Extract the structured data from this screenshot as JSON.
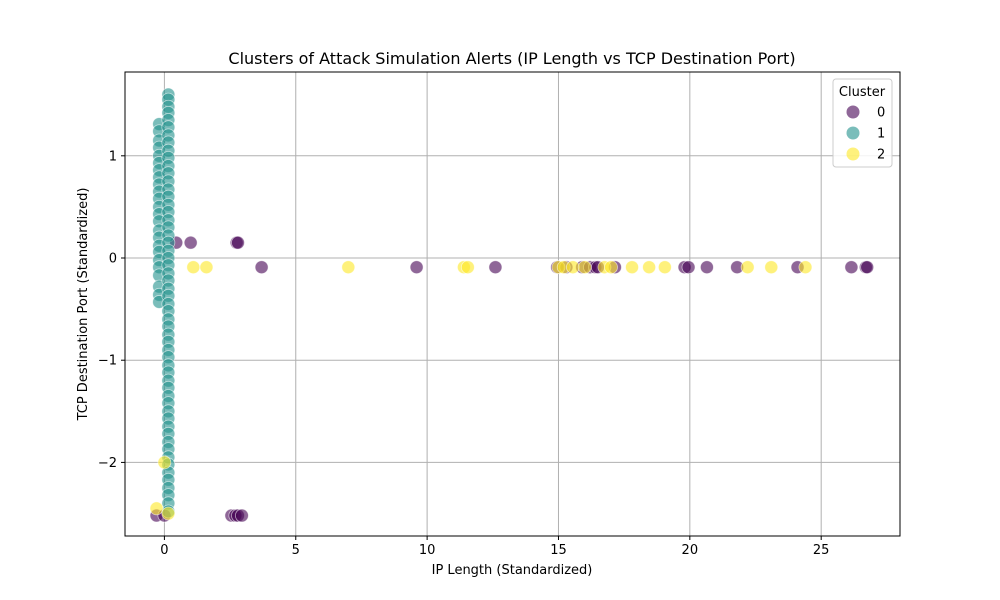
{
  "chart_data": {
    "type": "scatter",
    "title": "Clusters of Attack Simulation Alerts (IP Length vs TCP Destination Port)",
    "xlabel": "IP Length (Standardized)",
    "ylabel": "TCP Destination Port (Standardized)",
    "xlim": [
      -1.5,
      28.0
    ],
    "ylim": [
      -2.72,
      1.82
    ],
    "xticks": [
      0,
      5,
      10,
      15,
      20,
      25
    ],
    "yticks": [
      -2,
      -1,
      0,
      1
    ],
    "xtick_labels": [
      "0",
      "5",
      "10",
      "15",
      "20",
      "25"
    ],
    "ytick_labels": [
      "−2",
      "−1",
      "0",
      "1"
    ],
    "grid": true,
    "legend": {
      "title": "Cluster",
      "placement": "top-right"
    },
    "series": [
      {
        "name": "0",
        "color": "#440154",
        "points": [
          [
            0.45,
            0.15
          ],
          [
            1.0,
            0.15
          ],
          [
            2.75,
            0.15
          ],
          [
            2.8,
            0.15
          ],
          [
            -0.3,
            -2.52
          ],
          [
            0.0,
            -2.52
          ],
          [
            2.55,
            -2.52
          ],
          [
            2.7,
            -2.52
          ],
          [
            2.8,
            -2.52
          ],
          [
            2.95,
            -2.52
          ],
          [
            3.7,
            -0.09
          ],
          [
            9.6,
            -0.09
          ],
          [
            12.6,
            -0.09
          ],
          [
            14.95,
            -0.09
          ],
          [
            15.3,
            -0.09
          ],
          [
            15.9,
            -0.09
          ],
          [
            16.2,
            -0.09
          ],
          [
            16.4,
            -0.09
          ],
          [
            16.5,
            -0.09
          ],
          [
            17.15,
            -0.09
          ],
          [
            19.8,
            -0.09
          ],
          [
            19.95,
            -0.09
          ],
          [
            20.65,
            -0.09
          ],
          [
            21.8,
            -0.09
          ],
          [
            24.1,
            -0.09
          ],
          [
            26.15,
            -0.09
          ],
          [
            26.7,
            -0.09
          ],
          [
            26.75,
            -0.09
          ]
        ]
      },
      {
        "name": "1",
        "color": "#21918c",
        "points": [
          [
            -0.2,
            1.31
          ],
          [
            -0.2,
            1.24
          ],
          [
            -0.2,
            1.15
          ],
          [
            -0.2,
            1.08
          ],
          [
            -0.2,
            1.0
          ],
          [
            -0.2,
            0.93
          ],
          [
            -0.2,
            0.86
          ],
          [
            -0.2,
            0.79
          ],
          [
            -0.2,
            0.72
          ],
          [
            -0.2,
            0.65
          ],
          [
            -0.2,
            0.58
          ],
          [
            -0.2,
            0.5
          ],
          [
            -0.2,
            0.43
          ],
          [
            -0.2,
            0.36
          ],
          [
            -0.2,
            0.27
          ],
          [
            -0.2,
            0.2
          ],
          [
            -0.2,
            0.12
          ],
          [
            -0.2,
            0.06
          ],
          [
            -0.2,
            -0.02
          ],
          [
            -0.2,
            -0.09
          ],
          [
            -0.2,
            -0.17
          ],
          [
            -0.2,
            -0.28
          ],
          [
            -0.2,
            -0.36
          ],
          [
            -0.2,
            -0.43
          ],
          [
            0.15,
            1.6
          ],
          [
            0.15,
            1.55
          ],
          [
            0.15,
            1.48
          ],
          [
            0.15,
            1.42
          ],
          [
            0.15,
            1.35
          ],
          [
            0.15,
            1.28
          ],
          [
            0.15,
            1.2
          ],
          [
            0.15,
            1.13
          ],
          [
            0.15,
            1.05
          ],
          [
            0.15,
            0.98
          ],
          [
            0.15,
            0.9
          ],
          [
            0.15,
            0.83
          ],
          [
            0.15,
            0.75
          ],
          [
            0.15,
            0.67
          ],
          [
            0.15,
            0.6
          ],
          [
            0.15,
            0.52
          ],
          [
            0.15,
            0.45
          ],
          [
            0.15,
            0.37
          ],
          [
            0.15,
            0.3
          ],
          [
            0.15,
            0.22
          ],
          [
            0.15,
            0.15
          ],
          [
            0.15,
            0.07
          ],
          [
            0.15,
            0.0
          ],
          [
            0.15,
            -0.07
          ],
          [
            0.15,
            -0.15
          ],
          [
            0.15,
            -0.22
          ],
          [
            0.15,
            -0.3
          ],
          [
            0.15,
            -0.37
          ],
          [
            0.15,
            -0.45
          ],
          [
            0.15,
            -0.52
          ],
          [
            0.15,
            -0.6
          ],
          [
            0.15,
            -0.67
          ],
          [
            0.15,
            -0.75
          ],
          [
            0.15,
            -0.82
          ],
          [
            0.15,
            -0.9
          ],
          [
            0.15,
            -0.97
          ],
          [
            0.15,
            -1.05
          ],
          [
            0.15,
            -1.12
          ],
          [
            0.15,
            -1.2
          ],
          [
            0.15,
            -1.27
          ],
          [
            0.15,
            -1.35
          ],
          [
            0.15,
            -1.42
          ],
          [
            0.15,
            -1.5
          ],
          [
            0.15,
            -1.57
          ],
          [
            0.15,
            -1.65
          ],
          [
            0.15,
            -1.72
          ],
          [
            0.15,
            -1.8
          ],
          [
            0.15,
            -1.87
          ],
          [
            0.15,
            -1.95
          ],
          [
            0.15,
            -2.02
          ],
          [
            0.15,
            -2.1
          ],
          [
            0.15,
            -2.17
          ],
          [
            0.15,
            -2.25
          ],
          [
            0.15,
            -2.32
          ],
          [
            0.15,
            -2.4
          ],
          [
            0.15,
            -2.48
          ]
        ]
      },
      {
        "name": "2",
        "color": "#fde725",
        "points": [
          [
            -0.3,
            -2.45
          ],
          [
            0.0,
            -2.0
          ],
          [
            0.15,
            -2.5
          ],
          [
            1.1,
            -0.09
          ],
          [
            1.6,
            -0.09
          ],
          [
            7.0,
            -0.09
          ],
          [
            11.4,
            -0.09
          ],
          [
            11.55,
            -0.09
          ],
          [
            15.0,
            -0.09
          ],
          [
            15.2,
            -0.09
          ],
          [
            15.55,
            -0.09
          ],
          [
            16.0,
            -0.09
          ],
          [
            16.75,
            -0.09
          ],
          [
            17.0,
            -0.09
          ],
          [
            17.8,
            -0.09
          ],
          [
            18.45,
            -0.09
          ],
          [
            19.05,
            -0.09
          ],
          [
            22.2,
            -0.09
          ],
          [
            23.1,
            -0.09
          ],
          [
            24.4,
            -0.09
          ]
        ]
      }
    ]
  }
}
